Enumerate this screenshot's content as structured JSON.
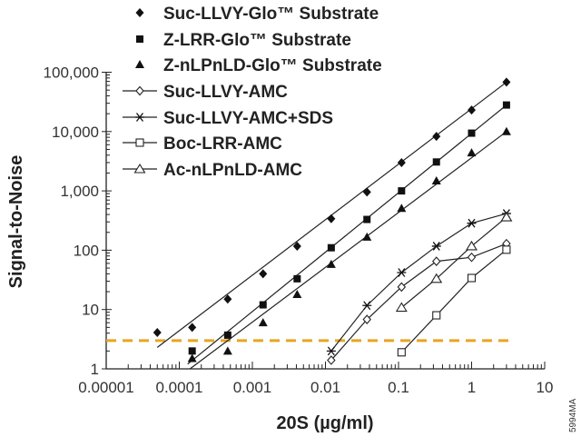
{
  "chart_data": {
    "type": "scatter",
    "xlabel": "20S (µg/ml)",
    "ylabel": "Signal-to-Noise",
    "x_scale": "log",
    "y_scale": "log",
    "xlim": [
      1e-05,
      10
    ],
    "ylim": [
      1,
      100000
    ],
    "x_ticks": [
      {
        "v": 1e-05,
        "label": "0.00001"
      },
      {
        "v": 0.0001,
        "label": "0.0001"
      },
      {
        "v": 0.001,
        "label": "0.001"
      },
      {
        "v": 0.01,
        "label": "0.01"
      },
      {
        "v": 0.1,
        "label": "0.1"
      },
      {
        "v": 1,
        "label": "1"
      },
      {
        "v": 10,
        "label": "10"
      }
    ],
    "y_ticks": [
      {
        "v": 1,
        "label": "1"
      },
      {
        "v": 10,
        "label": "10"
      },
      {
        "v": 100,
        "label": "100"
      },
      {
        "v": 1000,
        "label": "1,000"
      },
      {
        "v": 10000,
        "label": "10,000"
      },
      {
        "v": 100000,
        "label": "100,000"
      }
    ],
    "grid": false,
    "legend_position": "top",
    "threshold": {
      "y": 3,
      "color": "#E8A521",
      "style": "dashed"
    },
    "series": [
      {
        "name": "Suc-LLVY-Glo™ Substrate",
        "marker": "filled-diamond",
        "style": "trendline",
        "x": [
          5e-05,
          0.00015,
          0.00046,
          0.0014,
          0.0041,
          0.012,
          0.037,
          0.11,
          0.33,
          1,
          3
        ],
        "y": [
          4.1,
          5,
          15,
          40,
          117,
          340,
          955,
          3000,
          8300,
          23000,
          68000
        ],
        "fit": [
          [
            5e-05,
            2.3
          ],
          [
            3,
            68000
          ]
        ]
      },
      {
        "name": "Z-LRR-Glo™ Substrate",
        "marker": "filled-square",
        "style": "trendline",
        "x": [
          0.00015,
          0.00046,
          0.0014,
          0.0041,
          0.012,
          0.037,
          0.11,
          0.33,
          1,
          3
        ],
        "y": [
          2,
          3.7,
          12,
          33,
          110,
          330,
          1000,
          3070,
          9400,
          28000
        ],
        "fit": [
          [
            0.00013,
            1.2
          ],
          [
            3,
            28000
          ]
        ]
      },
      {
        "name": "Z-nLPnLD-Glo™ Substrate",
        "marker": "filled-triangle",
        "style": "trendline",
        "x": [
          0.00015,
          0.00046,
          0.0014,
          0.0041,
          0.012,
          0.037,
          0.11,
          0.33,
          1,
          3
        ],
        "y": [
          1.5,
          2,
          6,
          18,
          58,
          167,
          510,
          1480,
          4400,
          10000
        ],
        "fit": [
          [
            0.00014,
            1.0
          ],
          [
            3,
            10000
          ]
        ]
      },
      {
        "name": "Suc-LLVY-AMC",
        "marker": "open-diamond",
        "style": "connected",
        "x": [
          0.012,
          0.037,
          0.11,
          0.33,
          1,
          3
        ],
        "y": [
          1.4,
          6.8,
          24,
          65,
          76,
          129
        ]
      },
      {
        "name": "Suc-LLVY-AMC+SDS",
        "marker": "asterisk",
        "style": "connected",
        "x": [
          0.012,
          0.037,
          0.11,
          0.33,
          1,
          3
        ],
        "y": [
          2,
          11.7,
          42,
          117,
          285,
          415
        ]
      },
      {
        "name": "Boc-LRR-AMC",
        "marker": "open-square",
        "style": "connected",
        "x": [
          0.11,
          0.33,
          1,
          3
        ],
        "y": [
          1.9,
          8,
          34,
          102
        ]
      },
      {
        "name": "Ac-nLPnLD-AMC",
        "marker": "open-triangle",
        "style": "connected",
        "x": [
          0.11,
          0.33,
          1,
          3
        ],
        "y": [
          10.8,
          33,
          117,
          360
        ]
      }
    ]
  },
  "figure_code": "5994MA"
}
